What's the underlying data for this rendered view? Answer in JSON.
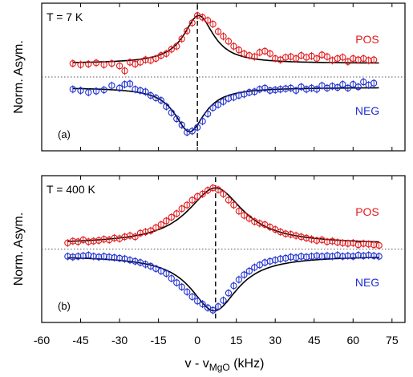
{
  "figure": {
    "xlabel_main": "v - v",
    "xlabel_sub": "MgO",
    "xlabel_unit": " (kHz)",
    "x_ticks": [
      "-60",
      "-45",
      "-30",
      "-15",
      "0",
      "15",
      "30",
      "45",
      "60",
      "75"
    ]
  },
  "colors": {
    "pos": "#e31a1c",
    "neg": "#1f2fd0",
    "fit": "#000000",
    "axis": "#000000",
    "baseline": "#555555"
  },
  "chart_data": [
    {
      "type": "scatter",
      "panel_label": "(a)",
      "temperature_label": "T = 7 K",
      "ylabel": "Norm. Asym.",
      "xlim": [
        -60,
        80
      ],
      "ylim": [
        -1.2,
        1.2
      ],
      "center_line_x": 0,
      "baseline_y": 0,
      "series": [
        {
          "name": "POS",
          "x": [
            -48,
            -45,
            -42,
            -39,
            -36,
            -33,
            -30,
            -28,
            -26,
            -24,
            -22,
            -20,
            -18,
            -16,
            -14,
            -12,
            -10,
            -8,
            -6,
            -4,
            -2,
            0,
            2,
            4,
            6,
            8,
            10,
            12,
            14,
            16,
            18,
            20,
            22,
            24,
            26,
            28,
            30,
            32,
            34,
            36,
            38,
            40,
            42,
            44,
            46,
            48,
            50,
            52,
            54,
            56,
            58,
            60,
            62,
            64,
            66,
            68
          ],
          "y": [
            0.22,
            0.2,
            0.21,
            0.23,
            0.2,
            0.22,
            0.18,
            0.1,
            0.24,
            0.21,
            0.24,
            0.28,
            0.27,
            0.3,
            0.35,
            0.38,
            0.45,
            0.5,
            0.62,
            0.75,
            0.88,
            1.0,
            0.97,
            0.92,
            0.86,
            0.74,
            0.66,
            0.58,
            0.5,
            0.44,
            0.38,
            0.35,
            0.33,
            0.4,
            0.42,
            0.38,
            0.3,
            0.28,
            0.32,
            0.33,
            0.3,
            0.35,
            0.32,
            0.34,
            0.3,
            0.36,
            0.33,
            0.27,
            0.3,
            0.32,
            0.25,
            0.3,
            0.28,
            0.3,
            0.27,
            0.28
          ]
        },
        {
          "name": "NEG",
          "x": [
            -48,
            -45,
            -42,
            -39,
            -36,
            -33,
            -30,
            -28,
            -26,
            -24,
            -22,
            -20,
            -18,
            -16,
            -14,
            -12,
            -10,
            -8,
            -6,
            -4,
            -2,
            0,
            2,
            4,
            6,
            8,
            10,
            12,
            14,
            16,
            18,
            20,
            22,
            24,
            26,
            28,
            30,
            32,
            34,
            36,
            38,
            40,
            42,
            44,
            46,
            48,
            50,
            52,
            54,
            56,
            58,
            60,
            62,
            64,
            66,
            68
          ],
          "y": [
            -0.2,
            -0.22,
            -0.25,
            -0.23,
            -0.21,
            -0.14,
            -0.18,
            -0.12,
            -0.11,
            -0.2,
            -0.22,
            -0.24,
            -0.3,
            -0.34,
            -0.38,
            -0.48,
            -0.58,
            -0.68,
            -0.78,
            -0.9,
            -0.88,
            -0.82,
            -0.72,
            -0.6,
            -0.5,
            -0.45,
            -0.4,
            -0.35,
            -0.33,
            -0.3,
            -0.28,
            -0.25,
            -0.24,
            -0.2,
            -0.18,
            -0.22,
            -0.21,
            -0.2,
            -0.19,
            -0.18,
            -0.22,
            -0.16,
            -0.2,
            -0.18,
            -0.2,
            -0.14,
            -0.18,
            -0.15,
            -0.17,
            -0.12,
            -0.18,
            -0.12,
            -0.16,
            -0.08,
            -0.13,
            -0.1
          ]
        }
      ]
    },
    {
      "type": "scatter",
      "panel_label": "(b)",
      "temperature_label": "T = 400 K",
      "ylabel": "Norm. Asym.",
      "xlim": [
        -60,
        80
      ],
      "ylim": [
        -1.2,
        1.2
      ],
      "center_line_x": 7,
      "baseline_y": 0,
      "series": [
        {
          "name": "POS",
          "x": [
            -50,
            -48,
            -46,
            -44,
            -42,
            -40,
            -38,
            -36,
            -34,
            -32,
            -30,
            -28,
            -26,
            -24,
            -22,
            -20,
            -18,
            -16,
            -14,
            -12,
            -10,
            -8,
            -6,
            -4,
            -2,
            0,
            2,
            4,
            6,
            8,
            10,
            12,
            14,
            16,
            18,
            20,
            22,
            24,
            26,
            28,
            30,
            32,
            34,
            36,
            38,
            40,
            42,
            44,
            46,
            48,
            50,
            52,
            54,
            56,
            58,
            60,
            62,
            64,
            66,
            68,
            70
          ],
          "y": [
            0.1,
            0.13,
            0.12,
            0.15,
            0.12,
            0.13,
            0.14,
            0.16,
            0.15,
            0.18,
            0.17,
            0.2,
            0.22,
            0.2,
            0.26,
            0.28,
            0.3,
            0.35,
            0.4,
            0.46,
            0.52,
            0.58,
            0.66,
            0.72,
            0.8,
            0.86,
            0.9,
            0.96,
            1.0,
            0.97,
            0.9,
            0.8,
            0.72,
            0.62,
            0.55,
            0.5,
            0.45,
            0.42,
            0.4,
            0.36,
            0.32,
            0.28,
            0.25,
            0.24,
            0.22,
            0.2,
            0.18,
            0.16,
            0.14,
            0.15,
            0.12,
            0.13,
            0.11,
            0.1,
            0.09,
            0.1,
            0.07,
            0.09,
            0.08,
            0.07,
            0.06
          ]
        },
        {
          "name": "NEG",
          "x": [
            -50,
            -48,
            -46,
            -44,
            -42,
            -40,
            -38,
            -36,
            -34,
            -32,
            -30,
            -28,
            -26,
            -24,
            -22,
            -20,
            -18,
            -16,
            -14,
            -12,
            -10,
            -8,
            -6,
            -4,
            -2,
            0,
            2,
            4,
            6,
            8,
            10,
            12,
            14,
            16,
            18,
            20,
            22,
            24,
            26,
            28,
            30,
            32,
            34,
            36,
            38,
            40,
            42,
            44,
            46,
            48,
            50,
            52,
            54,
            56,
            58,
            60,
            62,
            64,
            66,
            68,
            70
          ],
          "y": [
            -0.12,
            -0.13,
            -0.12,
            -0.11,
            -0.1,
            -0.12,
            -0.13,
            -0.12,
            -0.13,
            -0.14,
            -0.15,
            -0.16,
            -0.18,
            -0.2,
            -0.22,
            -0.25,
            -0.28,
            -0.32,
            -0.36,
            -0.4,
            -0.48,
            -0.55,
            -0.62,
            -0.7,
            -0.78,
            -0.85,
            -0.9,
            -0.96,
            -1.0,
            -0.94,
            -0.84,
            -0.72,
            -0.6,
            -0.5,
            -0.42,
            -0.36,
            -0.3,
            -0.26,
            -0.22,
            -0.2,
            -0.18,
            -0.16,
            -0.15,
            -0.13,
            -0.14,
            -0.12,
            -0.13,
            -0.12,
            -0.11,
            -0.12,
            -0.11,
            -0.12,
            -0.1,
            -0.12,
            -0.11,
            -0.12,
            -0.1,
            -0.11,
            -0.1,
            -0.11,
            -0.12
          ]
        }
      ]
    }
  ]
}
